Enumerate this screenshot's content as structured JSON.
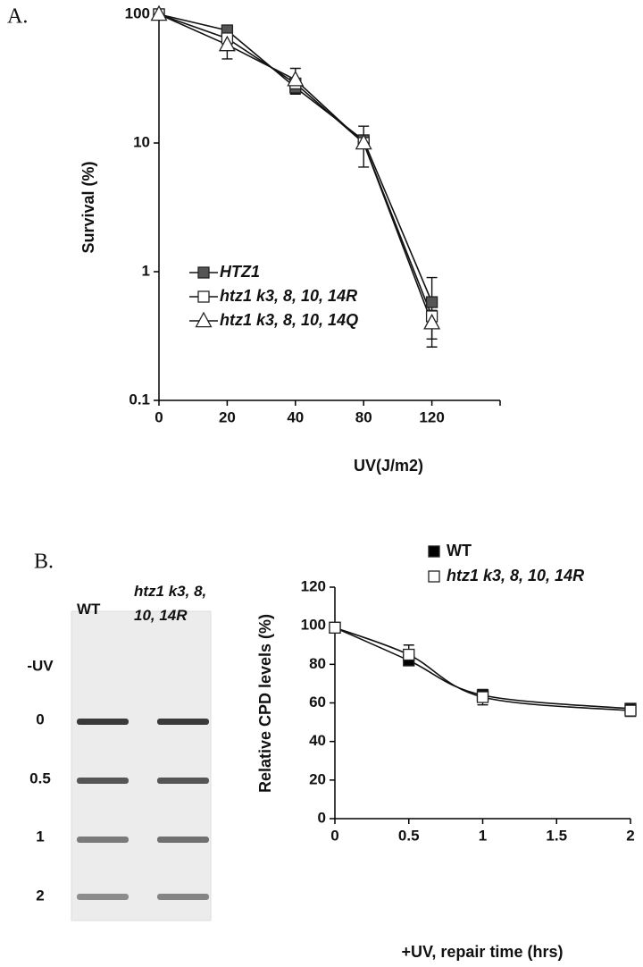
{
  "chart_data": [
    {
      "type": "line",
      "panel_label": "A.",
      "y_label": "Survival (%)",
      "x_label": "UV(J/m2)",
      "categories": [
        "0",
        "20",
        "40",
        "80",
        "120",
        null
      ],
      "log": true,
      "ylim": [
        0.1,
        100
      ],
      "yticks": [
        0.1,
        1,
        10,
        100
      ],
      "grid": false,
      "legend": "lower-left",
      "series": [
        {
          "name": "HTZ1",
          "color": "#555555",
          "marker": "square",
          "values": [
            100,
            75,
            27,
            10.5,
            0.58,
            null
          ],
          "errors": [
            null,
            null,
            null,
            null,
            0.32,
            null
          ]
        },
        {
          "name": "htz1 k3, 8, 10, 14R",
          "color": "#ffffff",
          "marker": "square",
          "values": [
            100,
            65,
            29,
            10,
            0.45,
            null
          ],
          "errors": [
            null,
            null,
            null,
            3.5,
            null,
            null
          ]
        },
        {
          "name": "htz1 k3, 8, 10, 14Q",
          "color": "#ffffff",
          "marker": "triangle",
          "values": [
            100,
            58,
            31,
            10,
            0.4,
            null
          ],
          "errors": [
            null,
            13,
            7,
            null,
            0.1,
            null
          ]
        }
      ]
    },
    {
      "type": "line",
      "panel_label": "B.",
      "y_label": "Relative CPD levels (%)",
      "x_label": "+UV, repair time (hrs)",
      "x": [
        0,
        0.5,
        1,
        2
      ],
      "xlim": [
        0,
        2
      ],
      "xticks": [
        0,
        0.5,
        1,
        1.5,
        2
      ],
      "ylim": [
        0,
        120
      ],
      "yticks": [
        0,
        20,
        40,
        60,
        80,
        100,
        120
      ],
      "grid": false,
      "legend": "top",
      "series": [
        {
          "name": "WT",
          "color": "#000000",
          "marker": "square",
          "values": [
            99,
            82,
            64,
            57
          ],
          "errors": [
            null,
            null,
            null,
            null
          ]
        },
        {
          "name": "htz1 k3, 8, 10, 14R",
          "color": "#ffffff",
          "marker": "square",
          "values": [
            99,
            85,
            63,
            56
          ],
          "errors": [
            null,
            5,
            4,
            3
          ]
        }
      ]
    }
  ],
  "blot": {
    "columns": [
      "WT",
      "htz1 k3, 8, 10, 14R"
    ],
    "rows": [
      "-UV",
      "0",
      "0.5",
      "1",
      "2"
    ]
  }
}
